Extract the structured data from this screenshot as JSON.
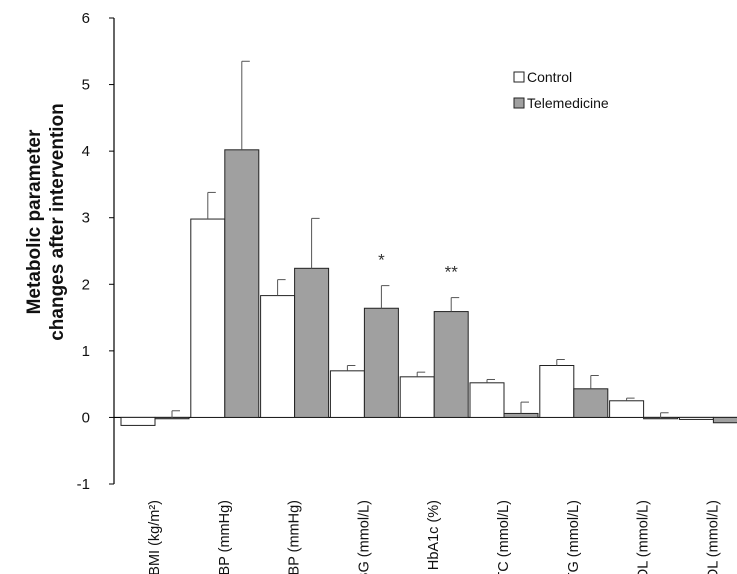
{
  "chart_data": {
    "type": "bar",
    "title": "",
    "xlabel": "",
    "ylabel": [
      "Metabolic parameter",
      "changes after intervention"
    ],
    "ylim": [
      -1,
      6
    ],
    "yticks": [
      -1,
      0,
      1,
      2,
      3,
      4,
      5,
      6
    ],
    "grid": false,
    "legend_position": "top-right",
    "categories": [
      "BMI (kg/m²)",
      "SBP (mmHg)",
      "DBP (mmHg)",
      "FBG (mmol/L)",
      "HbA1c (%)",
      "TC (mmol/L)",
      "TG (mmol/L)",
      "LDL (mmol/L)",
      "HDL (mmol/L)"
    ],
    "series": [
      {
        "name": "Control",
        "color": "#ffffff",
        "values": [
          -0.12,
          2.98,
          1.83,
          0.7,
          0.61,
          0.52,
          0.78,
          0.25,
          -0.03
        ],
        "errors": [
          0.0,
          0.4,
          0.24,
          0.08,
          0.07,
          0.05,
          0.09,
          0.04,
          0.0
        ]
      },
      {
        "name": "Telemedicine",
        "color": "#a0a0a0",
        "values": [
          -0.02,
          4.02,
          2.24,
          1.64,
          1.59,
          0.06,
          0.43,
          -0.02,
          -0.08
        ],
        "errors": [
          0.12,
          1.33,
          0.75,
          0.34,
          0.21,
          0.17,
          0.2,
          0.09,
          0.0
        ]
      }
    ],
    "annotations": [
      {
        "category_index": 3,
        "text": "*"
      },
      {
        "category_index": 4,
        "text": "**"
      }
    ]
  }
}
